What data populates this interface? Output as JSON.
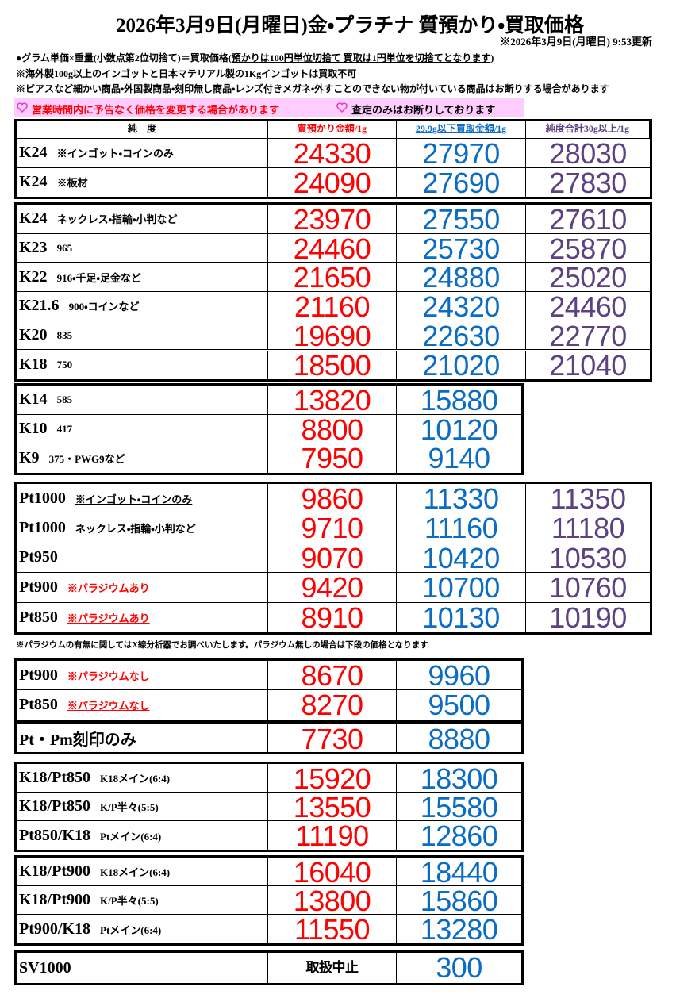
{
  "header": {
    "title": "2026年3月9日(月曜日)金・プラチナ 質預かり・買取価格",
    "updated": "※2026年3月9日(月曜日) 9:53更新"
  },
  "notes": [
    [
      "●グラム単価×重量(小数点第2位切捨て)＝買取価格(",
      "預かりは100円単位切捨て 買取は1円単位を切捨てとなります",
      ")"
    ],
    [
      "※海外製100g以上のインゴットと日本マテリアル製の1Kgインゴットは買取不可"
    ],
    [
      "※ピアスなど細かい商品・外国製商品・刻印無し商品・レンズ付きメガネ・外すことのできない物が付いている商品はお断りする場合があります"
    ]
  ],
  "banner": [
    "営業時間内に予告なく価格を変更する場合があります",
    "査定のみはお断りしております"
  ],
  "columns": [
    "純　度",
    "質預かり金額/1g",
    "29.9g以下買取金額/1g",
    "純度合計30g以上/1g"
  ],
  "price_groups": [
    {
      "rows": [
        {
          "name": "K24",
          "note": "※インゴット・コインのみ",
          "pawn": 24330,
          "buy": 27970,
          "bulk": 28030
        },
        {
          "name": "K24",
          "note": "※板材",
          "pawn": 24090,
          "buy": 27690,
          "bulk": 27830
        }
      ]
    },
    {
      "rows": [
        {
          "name": "K24",
          "note": "ネックレス・指輪・小判など",
          "pawn": 23970,
          "buy": 27550,
          "bulk": 27610
        },
        {
          "name": "K23",
          "note": "965",
          "pawn": 24460,
          "buy": 25730,
          "bulk": 25870
        },
        {
          "name": "K22",
          "note": "916・千足・足金など",
          "pawn": 21650,
          "buy": 24880,
          "bulk": 25020
        },
        {
          "name": "K21.6",
          "note": "900・コインなど",
          "pawn": 21160,
          "buy": 24320,
          "bulk": 24460
        },
        {
          "name": "K20",
          "note": "835",
          "pawn": 19690,
          "buy": 22630,
          "bulk": 22770
        },
        {
          "name": "K18",
          "note": "750",
          "pawn": 18500,
          "buy": 21020,
          "bulk": 21040
        }
      ]
    },
    {
      "rows": [
        {
          "name": "K14",
          "note": "585",
          "pawn": 13820,
          "buy": 15880
        },
        {
          "name": "K10",
          "note": "417",
          "pawn": 8800,
          "buy": 10120
        },
        {
          "name": "K9",
          "note": "375・PWG9など",
          "pawn": 7950,
          "buy": 9140
        }
      ]
    },
    {
      "rows": [
        {
          "name": "Pt1000",
          "note": "※インゴット・コインのみ",
          "pawn": 9860,
          "buy": 11330,
          "bulk": 11350
        },
        {
          "name": "Pt1000",
          "note": "ネックレス・指輪・小判など",
          "pawn": 9710,
          "buy": 11160,
          "bulk": 11180
        },
        {
          "name": "Pt950",
          "pawn": 9070,
          "buy": 10420,
          "bulk": 10530
        },
        {
          "name": "Pt900",
          "note": "※パラジウムあり",
          "pawn": 9420,
          "buy": 10700,
          "bulk": 10760
        },
        {
          "name": "Pt850",
          "note": "※パラジウムあり",
          "pawn": 8910,
          "buy": 10130,
          "bulk": 10190
        }
      ]
    },
    {
      "rows": [
        {
          "name": "Pt900",
          "note": "※パラジウムなし",
          "pawn": 8670,
          "buy": 9960
        },
        {
          "name": "Pt850",
          "note": "※パラジウムなし",
          "pawn": 8270,
          "buy": 9500
        }
      ]
    },
    {
      "rows": [
        {
          "name": "Pt・Pm刻印のみ",
          "pawn": 7730,
          "buy": 8880
        }
      ]
    },
    {
      "rows": [
        {
          "name": "K18/Pt850",
          "note": "K18メイン(6:4)",
          "pawn": 15920,
          "buy": 18300
        },
        {
          "name": "K18/Pt850",
          "note": "K/P半々(5:5)",
          "pawn": 13550,
          "buy": 15580
        },
        {
          "name": "Pt850/K18",
          "note": "Ptメイン(6:4)",
          "pawn": 11190,
          "buy": 12860
        }
      ]
    },
    {
      "rows": [
        {
          "name": "K18/Pt900",
          "note": "K18メイン(6:4)",
          "pawn": 16040,
          "buy": 18440
        },
        {
          "name": "K18/Pt900",
          "note": "K/P半々(5:5)",
          "pawn": 13800,
          "buy": 15860
        },
        {
          "name": "Pt900/K18",
          "note": "Ptメイン(6:4)",
          "pawn": 11550,
          "buy": 13280
        }
      ]
    },
    {
      "rows": [
        {
          "name": "SV1000",
          "pawn": "取扱中止",
          "buy": 300
        }
      ]
    }
  ],
  "palladium_note": "※パラジウムの有無に関してはX線分析器でお調べいたします。パラジウム無しの場合は下段の価格となります"
}
